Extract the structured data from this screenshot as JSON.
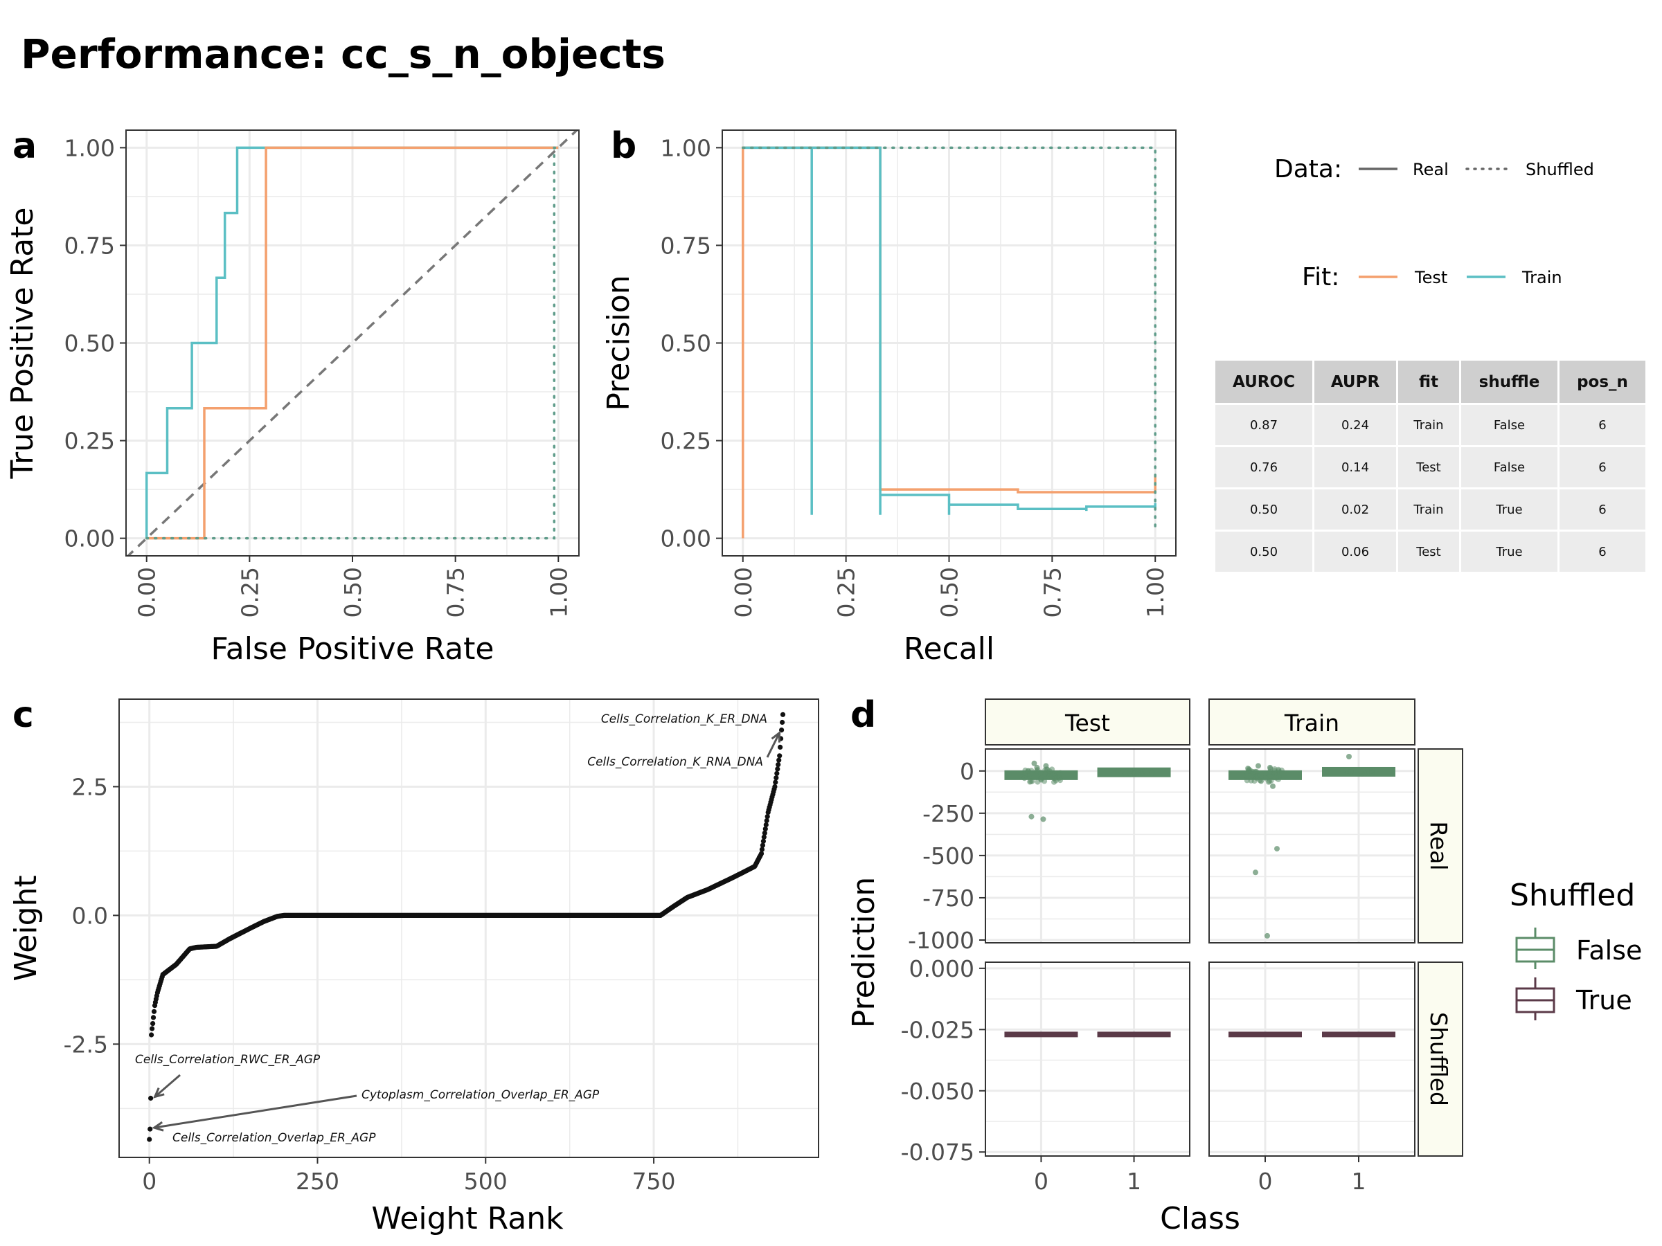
{
  "title": "Performance: cc_s_n_objects",
  "colors": {
    "test": "#f4a06e",
    "train": "#5bbfc4",
    "shuffled_line": "#5f9c8a",
    "diagonal": "#777777",
    "false_box": "#5b8c68",
    "true_box": "#5b3a48",
    "strip_fill": "#fbfcf0",
    "grid": "#ebebeb",
    "weights": "#111111"
  },
  "legend": {
    "data_title": "Data:",
    "data_items": [
      "Real",
      "Shuffled"
    ],
    "fit_title": "Fit:",
    "fit_items": [
      "Test",
      "Train"
    ],
    "shuffled_title": "Shuffled",
    "shuffled_items": [
      "False",
      "True"
    ]
  },
  "table": {
    "headers": [
      "AUROC",
      "AUPR",
      "fit",
      "shuffle",
      "pos_n"
    ],
    "rows": [
      [
        "0.87",
        "0.24",
        "Train",
        "False",
        "6"
      ],
      [
        "0.76",
        "0.14",
        "Test",
        "False",
        "6"
      ],
      [
        "0.50",
        "0.02",
        "Train",
        "True",
        "6"
      ],
      [
        "0.50",
        "0.06",
        "Test",
        "True",
        "6"
      ]
    ]
  },
  "chart_data": [
    {
      "panel": "a",
      "type": "line",
      "xlabel": "False Positive Rate",
      "ylabel": "True Positive Rate",
      "xlim": [
        0,
        1
      ],
      "ylim": [
        0,
        1
      ],
      "ticks": [
        "0.00",
        "0.25",
        "0.50",
        "0.75",
        "1.00"
      ],
      "series": [
        {
          "name": "Train",
          "data": "Real",
          "x": [
            0,
            0,
            0.05,
            0.05,
            0.11,
            0.11,
            0.17,
            0.17,
            0.19,
            0.19,
            0.22,
            0.22,
            1.0
          ],
          "y": [
            0,
            0.167,
            0.167,
            0.333,
            0.333,
            0.5,
            0.5,
            0.667,
            0.667,
            0.833,
            0.833,
            1.0,
            1.0
          ]
        },
        {
          "name": "Test",
          "data": "Real",
          "x": [
            0,
            0.14,
            0.14,
            0.29,
            0.29,
            1.0
          ],
          "y": [
            0,
            0,
            0.333,
            0.333,
            1.0,
            1.0
          ]
        },
        {
          "name": "Train",
          "data": "Shuffled",
          "x": [
            0,
            0.99,
            0.99,
            1.0
          ],
          "y": [
            0,
            0,
            1.0,
            1.0
          ]
        }
      ],
      "diagonal": true
    },
    {
      "panel": "b",
      "type": "line",
      "xlabel": "Recall",
      "ylabel": "Precision",
      "xlim": [
        0,
        1
      ],
      "ylim": [
        0,
        1
      ],
      "ticks": [
        "0.00",
        "0.25",
        "0.50",
        "0.75",
        "1.00"
      ],
      "series": [
        {
          "name": "Test",
          "data": "Real",
          "x": [
            0,
            0,
            0.333,
            0.333,
            0.667,
            0.667,
            1.0,
            1.0
          ],
          "y": [
            0,
            1.0,
            1.0,
            0.125,
            0.125,
            0.118,
            0.118,
            0.16
          ]
        },
        {
          "name": "Train",
          "data": "Real",
          "x": [
            0,
            0.167,
            0.167,
            0.167,
            0.167,
            0.333,
            0.333,
            0.333,
            0.333,
            0.5,
            0.5,
            0.5,
            0.5,
            0.667,
            0.667,
            0.667,
            0.667,
            0.833,
            0.833,
            0.833,
            0.833,
            1.0,
            1.0
          ],
          "y": [
            1.0,
            1.0,
            0.06,
            0.06,
            1.0,
            1.0,
            0.06,
            0.06,
            0.111,
            0.111,
            0.06,
            0.06,
            0.086,
            0.086,
            0.075,
            0.075,
            0.075,
            0.075,
            0.07,
            0.07,
            0.081,
            0.081,
            0.09
          ]
        },
        {
          "name": "Train",
          "data": "Shuffled",
          "x": [
            0,
            1.0,
            1.0
          ],
          "y": [
            1.0,
            1.0,
            0.02
          ]
        }
      ]
    },
    {
      "panel": "c",
      "type": "scatter",
      "xlabel": "Weight Rank",
      "ylabel": "Weight",
      "xlim": [
        -45,
        995
      ],
      "ylim": [
        -4.7,
        4.2
      ],
      "xticks": [
        0,
        250,
        500,
        750
      ],
      "yticks": [
        -2.5,
        0.0,
        2.5
      ],
      "ytick_labels": [
        "-2.5",
        "0.0",
        "2.5"
      ],
      "curve_knots": {
        "rank": [
          0,
          1,
          2,
          3,
          4,
          5,
          8,
          12,
          20,
          30,
          40,
          50,
          60,
          70,
          100,
          120,
          150,
          170,
          190,
          200,
          760,
          780,
          800,
          830,
          870,
          900,
          910,
          920,
          930,
          937,
          940,
          942
        ],
        "weight": [
          -4.35,
          -4.15,
          -3.55,
          -2.32,
          -2.2,
          -2.1,
          -1.75,
          -1.5,
          -1.15,
          -1.05,
          -0.95,
          -0.8,
          -0.65,
          -0.62,
          -0.6,
          -0.45,
          -0.25,
          -0.12,
          -0.02,
          0,
          0,
          0.18,
          0.35,
          0.5,
          0.75,
          0.95,
          1.2,
          2.0,
          2.5,
          3.1,
          3.6,
          3.9
        ]
      },
      "annotations": [
        {
          "label": "Cells_Correlation_K_ER_DNA",
          "rank": 942,
          "weight": 3.9
        },
        {
          "label": "Cells_Correlation_K_RNA_DNA",
          "rank": 940,
          "weight": 3.6
        },
        {
          "label": "Cells_Correlation_RWC_ER_AGP",
          "rank": 2,
          "weight": -3.55
        },
        {
          "label": "Cytoplasm_Correlation_Overlap_ER_AGP",
          "rank": 1,
          "weight": -4.15
        },
        {
          "label": "Cells_Correlation_Overlap_ER_AGP",
          "rank": 0,
          "weight": -4.35
        }
      ]
    },
    {
      "panel": "d",
      "type": "box",
      "xlabel": "Class",
      "ylabel": "Prediction",
      "categories": [
        "0",
        "1"
      ],
      "facet_columns": [
        "Test",
        "Train"
      ],
      "facet_rows": [
        "Real",
        "Shuffled"
      ],
      "real_ylim": [
        -1000,
        130
      ],
      "real_yticks": [
        "0",
        "-250",
        "-500",
        "-750",
        "-1000"
      ],
      "shuffled_ylim": [
        -0.0755,
        0.0025
      ],
      "shuffled_yticks": [
        "0.000",
        "-0.025",
        "-0.050",
        "-0.075"
      ],
      "real": {
        "Test": {
          "class0_median": -25,
          "class1_median": -8,
          "class0_outliers": [
            -270,
            -285,
            45,
            30,
            20
          ],
          "class1_outliers": [
            -5
          ]
        },
        "Train": {
          "class0_median": -25,
          "class1_median": -5,
          "class0_outliers": [
            -600,
            -975,
            30,
            20,
            -60,
            -90
          ],
          "class1_outliers": [
            85,
            2
          ],
          "extra_outliers": [
            -460
          ]
        }
      },
      "shuffled": {
        "value": -0.027
      }
    }
  ]
}
